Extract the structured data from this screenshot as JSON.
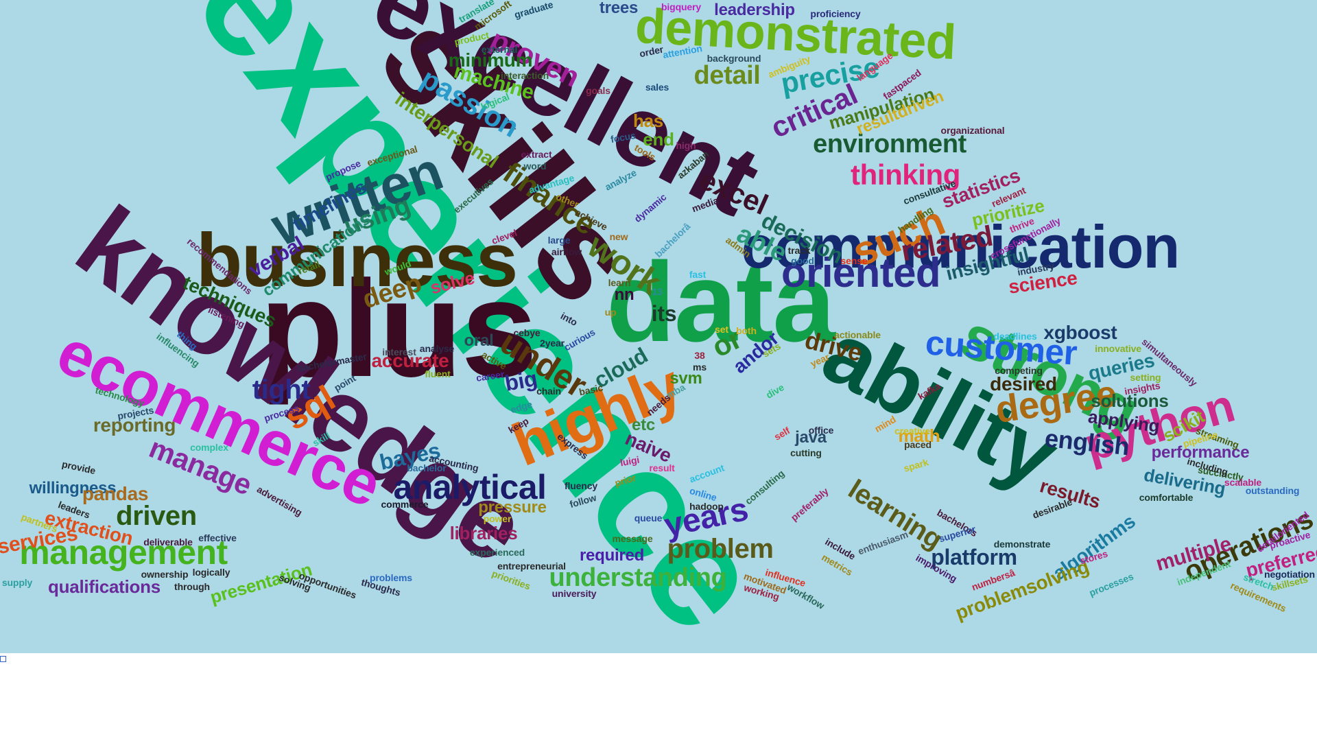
{
  "page": {
    "background": "#ffffff",
    "cloud_background": "#add8e6"
  },
  "wordcloud": {
    "words": [
      {
        "text": "experience",
        "color": "#00c082"
      },
      {
        "text": "skills",
        "color": "#3a0f27"
      },
      {
        "text": "excellent",
        "color": "#3a0f35"
      },
      {
        "text": "plus",
        "color": "#3a0a22"
      },
      {
        "text": "knowledge",
        "color": "#4a1548"
      },
      {
        "text": "data",
        "color": "#10a04a"
      },
      {
        "text": "business",
        "color": "#3d2f0a"
      },
      {
        "text": "communication",
        "color": "#14296e"
      },
      {
        "text": "ability",
        "color": "#00573d"
      },
      {
        "text": "ecommerce",
        "color": "#d21ed2"
      },
      {
        "text": "demonstrated",
        "color": "#6ab51a"
      },
      {
        "text": "strong",
        "color": "#23aa4d"
      },
      {
        "text": "highly",
        "color": "#e06c14"
      },
      {
        "text": "python",
        "color": "#cd2d8c"
      },
      {
        "text": "written",
        "color": "#1c5361"
      },
      {
        "text": "analytical",
        "color": "#1b1b68"
      },
      {
        "text": "management",
        "color": "#44b31e"
      },
      {
        "text": "oriented",
        "color": "#2d2d8d"
      },
      {
        "text": "customer",
        "color": "#2060e6"
      },
      {
        "text": "work",
        "color": "#51731c"
      },
      {
        "text": "finance",
        "color": "#4d4d0c"
      },
      {
        "text": "years",
        "color": "#4422a8"
      },
      {
        "text": "degree",
        "color": "#a96a13"
      },
      {
        "text": "learning",
        "color": "#5b5b1a"
      },
      {
        "text": "understanding",
        "color": "#3cb23c"
      },
      {
        "text": "problem",
        "color": "#5a5a1a"
      },
      {
        "text": "such",
        "color": "#cf6a16"
      },
      {
        "text": "thinking",
        "color": "#e0237b"
      },
      {
        "text": "environment",
        "color": "#185a32"
      },
      {
        "text": "critical",
        "color": "#6b2590"
      },
      {
        "text": "precise",
        "color": "#18a0a0"
      },
      {
        "text": "detail",
        "color": "#6b8c1c"
      },
      {
        "text": "passion",
        "color": "#2a9acb"
      },
      {
        "text": "proven",
        "color": "#a3209b"
      },
      {
        "text": "sql",
        "color": "#e05c10"
      },
      {
        "text": "under",
        "color": "#5a380d"
      },
      {
        "text": "deep",
        "color": "#7a5a12"
      },
      {
        "text": "using",
        "color": "#1f7a5a"
      },
      {
        "text": "manage",
        "color": "#8a2a9e"
      },
      {
        "text": "driven",
        "color": "#2a5a12"
      },
      {
        "text": "tight",
        "color": "#2a2a8a"
      },
      {
        "text": "extraction",
        "color": "#e0501c"
      },
      {
        "text": "services",
        "color": "#e0501c"
      },
      {
        "text": "qualifications",
        "color": "#6a2a9a"
      },
      {
        "text": "presentation",
        "color": "#5ac01e"
      },
      {
        "text": "willingness",
        "color": "#1a5a8a"
      },
      {
        "text": "pandas",
        "color": "#a86a1e"
      },
      {
        "text": "reporting",
        "color": "#6a6a2a"
      },
      {
        "text": "techniques",
        "color": "#1a5a1a"
      },
      {
        "text": "verbal",
        "color": "#4a1e9a"
      },
      {
        "text": "timelines",
        "color": "#1a4a8a"
      },
      {
        "text": "communications",
        "color": "#1e8a6a"
      },
      {
        "text": "interpersonal",
        "color": "#6a9a1a"
      },
      {
        "text": "machine",
        "color": "#5ac01e"
      },
      {
        "text": "minimum",
        "color": "#1a6a1a"
      },
      {
        "text": "excel",
        "color": "#3a0f27"
      },
      {
        "text": "able",
        "color": "#2a9a7a"
      },
      {
        "text": "decision",
        "color": "#1a6a5a"
      },
      {
        "text": "related",
        "color": "#7a1a3a"
      },
      {
        "text": "statistics",
        "color": "#a02060"
      },
      {
        "text": "prioritize",
        "color": "#7ac01e"
      },
      {
        "text": "insightful",
        "color": "#1a5a6a"
      },
      {
        "text": "science",
        "color": "#d02040"
      },
      {
        "text": "drive",
        "color": "#5a3a0a"
      },
      {
        "text": "xgboost",
        "color": "#1a3a6a"
      },
      {
        "text": "queries",
        "color": "#1a7a8a"
      },
      {
        "text": "solutions",
        "color": "#1a5a3a"
      },
      {
        "text": "english",
        "color": "#1a2a6a"
      },
      {
        "text": "applying",
        "color": "#3a1a5a"
      },
      {
        "text": "performance",
        "color": "#6a2a9a"
      },
      {
        "text": "delivering",
        "color": "#1a6a8a"
      },
      {
        "text": "scikit",
        "color": "#8ab01e"
      },
      {
        "text": "operations",
        "color": "#3a3a0a"
      },
      {
        "text": "preferred",
        "color": "#c02080"
      },
      {
        "text": "multiple",
        "color": "#a0206a"
      },
      {
        "text": "results",
        "color": "#7a1a2a"
      },
      {
        "text": "algorithms",
        "color": "#1a7aa0"
      },
      {
        "text": "platform",
        "color": "#1a3a6a"
      },
      {
        "text": "problemsolving",
        "color": "#8a8a0a"
      },
      {
        "text": "desired",
        "color": "#3a2a0a"
      },
      {
        "text": "math",
        "color": "#e0a010"
      },
      {
        "text": "java",
        "color": "#2a4a6a"
      },
      {
        "text": "naive",
        "color": "#6a1a6a"
      },
      {
        "text": "bayes",
        "color": "#1a6a9a"
      },
      {
        "text": "libraries",
        "color": "#a02060"
      },
      {
        "text": "required",
        "color": "#4a1ea8"
      },
      {
        "text": "pressure",
        "color": "#a08a1a"
      },
      {
        "text": "cloud",
        "color": "#1a6a5a"
      },
      {
        "text": "svm",
        "color": "#3a8a1a"
      },
      {
        "text": "etc",
        "color": "#3a8a3a"
      },
      {
        "text": "big",
        "color": "#2a2a8a"
      },
      {
        "text": "oral",
        "color": "#2a4a5a"
      },
      {
        "text": "accurate",
        "color": "#c02040"
      },
      {
        "text": "solve",
        "color": "#e0306a"
      },
      {
        "text": "its",
        "color": "#1a3a2a"
      },
      {
        "text": "nn",
        "color": "#3a0a3a"
      },
      {
        "text": "or",
        "color": "#2a8a2a"
      },
      {
        "text": "andor",
        "color": "#2a2aa0"
      },
      {
        "text": "has",
        "color": "#c08a10"
      },
      {
        "text": "end",
        "color": "#5ab01e"
      },
      {
        "text": "leadership",
        "color": "#4a2aa0"
      },
      {
        "text": "trees",
        "color": "#2a4a8a"
      },
      {
        "text": "manipulation",
        "color": "#4a7a1a"
      },
      {
        "text": "resultdriven",
        "color": "#d0b01e"
      },
      {
        "text": "bigquery",
        "color": "#c020c0"
      },
      {
        "text": "proficiency",
        "color": "#2a2a7a"
      },
      {
        "text": "translate",
        "color": "#1aa07a"
      },
      {
        "text": "microsoft",
        "color": "#5a5a0a"
      },
      {
        "text": "graduate",
        "color": "#1a4a6a"
      },
      {
        "text": "product",
        "color": "#7ac01e"
      },
      {
        "text": "external",
        "color": "#1a5a5a"
      },
      {
        "text": "order",
        "color": "#2a2a4a"
      },
      {
        "text": "attention",
        "color": "#2aa0e0"
      },
      {
        "text": "background",
        "color": "#2a4a5a"
      },
      {
        "text": "ambiguity",
        "color": "#d0c01e"
      },
      {
        "text": "language",
        "color": "#e0305a"
      },
      {
        "text": "fastpaced",
        "color": "#8a1a5a"
      },
      {
        "text": "organizational",
        "color": "#5a1a3a"
      },
      {
        "text": "interaction",
        "color": "#3a5a2a"
      },
      {
        "text": "logical",
        "color": "#2ac07a"
      },
      {
        "text": "goals",
        "color": "#8a2a4a"
      },
      {
        "text": "sales",
        "color": "#1a4a7a"
      },
      {
        "text": "focus",
        "color": "#2a5a8a"
      },
      {
        "text": "high",
        "color": "#8a2a6a"
      },
      {
        "text": "tools",
        "color": "#a06a1a"
      },
      {
        "text": "extract",
        "color": "#6a1a5a"
      },
      {
        "text": "word",
        "color": "#2a5a5a"
      },
      {
        "text": "exceptional",
        "color": "#6a5a1a"
      },
      {
        "text": "propose",
        "color": "#4a2aa0"
      },
      {
        "text": "advantage",
        "color": "#2ac0c0"
      },
      {
        "text": "azkaban",
        "color": "#2a3a2a"
      },
      {
        "text": "analyze",
        "color": "#2a8aa0"
      },
      {
        "text": "executives",
        "color": "#2a6a4a"
      },
      {
        "text": "other",
        "color": "#a08a1a"
      },
      {
        "text": "achieve",
        "color": "#4a3a1a"
      },
      {
        "text": "dynamic",
        "color": "#4a2aa0"
      },
      {
        "text": "media",
        "color": "#3a1a3a"
      },
      {
        "text": "consultative",
        "color": "#1a3a3a"
      },
      {
        "text": "relevant",
        "color": "#a02040"
      },
      {
        "text": "handling",
        "color": "#4a6a1a"
      },
      {
        "text": "thrive",
        "color": "#c02080"
      },
      {
        "text": "crossfunctionally",
        "color": "#a020a0"
      },
      {
        "text": "industry",
        "color": "#2a3a5a"
      },
      {
        "text": "recommendations",
        "color": "#6a2a6a"
      },
      {
        "text": "clevel",
        "color": "#a02060"
      },
      {
        "text": "new",
        "color": "#a06a1a"
      },
      {
        "text": "bachelorâ",
        "color": "#4aa0c0"
      },
      {
        "text": "admin",
        "color": "#8a7a1a"
      },
      {
        "text": "track",
        "color": "#2a2a2a"
      },
      {
        "text": "sense",
        "color": "#e0301a"
      },
      {
        "text": "good",
        "color": "#2a6a9a"
      },
      {
        "text": "large",
        "color": "#2a4a8a"
      },
      {
        "text": "airflow",
        "color": "#3a1a3a"
      },
      {
        "text": "retail",
        "color": "#4a7a1a"
      },
      {
        "text": "would",
        "color": "#3ac03a"
      },
      {
        "text": "fast",
        "color": "#2ac0e0"
      },
      {
        "text": "learn",
        "color": "#5a5a1a"
      },
      {
        "text": "listening",
        "color": "#6a1a5a"
      },
      {
        "text": "into",
        "color": "#2a2a4a"
      },
      {
        "text": "up",
        "color": "#a08a1a"
      },
      {
        "text": "13",
        "color": "#2a8aa0"
      },
      {
        "text": "curious",
        "color": "#2a4aa0"
      },
      {
        "text": "2year",
        "color": "#2a2a4a"
      },
      {
        "text": "cebye",
        "color": "#4a1a3a"
      },
      {
        "text": "set",
        "color": "#e0c01e"
      },
      {
        "text": "both",
        "color": "#d0b01e"
      },
      {
        "text": "actionable",
        "color": "#8a8a1a"
      },
      {
        "text": "deadlines",
        "color": "#2ac0e0"
      },
      {
        "text": "innovative",
        "color": "#8ab01e"
      },
      {
        "text": "simultaneously",
        "color": "#6a2a6a"
      },
      {
        "text": "competing",
        "color": "#2a3a2a"
      },
      {
        "text": "setting",
        "color": "#8ab01e"
      },
      {
        "text": "insights",
        "color": "#a02060"
      },
      {
        "text": "streaming",
        "color": "#4a5a0a"
      },
      {
        "text": "pipeline",
        "color": "#d0c01e"
      },
      {
        "text": "succinctly",
        "color": "#2a5a1a"
      },
      {
        "text": "including",
        "color": "#2a2a2a"
      },
      {
        "text": "scalable",
        "color": "#c02080"
      },
      {
        "text": "outstanding",
        "color": "#2a6ac0"
      },
      {
        "text": "comfortable",
        "color": "#1a3a2a"
      },
      {
        "text": "detailoriented",
        "color": "#a020a0"
      },
      {
        "text": "proactive",
        "color": "#a020a0"
      },
      {
        "text": "negotiation",
        "color": "#1a2a5a"
      },
      {
        "text": "skillsets",
        "color": "#8ab01e"
      },
      {
        "text": "stretch",
        "color": "#2ac0a0"
      },
      {
        "text": "independent",
        "color": "#4ac07a"
      },
      {
        "text": "requirements",
        "color": "#a08a1a"
      },
      {
        "text": "processes",
        "color": "#2aa0a0"
      },
      {
        "text": "stores",
        "color": "#c02080"
      },
      {
        "text": "desirable",
        "color": "#2a2a2a"
      },
      {
        "text": "bachelors",
        "color": "#4a1a3a"
      },
      {
        "text": "superior",
        "color": "#2a4aa0"
      },
      {
        "text": "demonstrate",
        "color": "#1a3a3a"
      },
      {
        "text": "improving",
        "color": "#4a1a6a"
      },
      {
        "text": "numbersâ",
        "color": "#c02040"
      },
      {
        "text": "spark",
        "color": "#c0c01e"
      },
      {
        "text": "enthusiasm",
        "color": "#4a5a6a"
      },
      {
        "text": "include",
        "color": "#3a1a3a"
      },
      {
        "text": "metrics",
        "color": "#a08a1a"
      },
      {
        "text": "influence",
        "color": "#e03020"
      },
      {
        "text": "working",
        "color": "#a02040"
      },
      {
        "text": "motivated",
        "color": "#a06a1a"
      },
      {
        "text": "workflow",
        "color": "#2a6a5a"
      },
      {
        "text": "paced",
        "color": "#4a3a1a"
      },
      {
        "text": "creative",
        "color": "#d0c01e"
      },
      {
        "text": "mind",
        "color": "#e08a1a"
      },
      {
        "text": "kafka",
        "color": "#8a1a3a"
      },
      {
        "text": "dive",
        "color": "#2ac07a"
      },
      {
        "text": "self",
        "color": "#e03040"
      },
      {
        "text": "office",
        "color": "#2a2a4a"
      },
      {
        "text": "cutting",
        "color": "#2a3a2a"
      },
      {
        "text": "year",
        "color": "#c08a1a"
      },
      {
        "text": "sets",
        "color": "#8ab01e"
      },
      {
        "text": "consulting",
        "color": "#2a6a4a"
      },
      {
        "text": "preferably",
        "color": "#a0206a"
      },
      {
        "text": "online",
        "color": "#2a8ae0"
      },
      {
        "text": "account",
        "color": "#2ac0e0"
      },
      {
        "text": "hadoop",
        "color": "#2a2a2a"
      },
      {
        "text": "mba",
        "color": "#4aa0a0"
      },
      {
        "text": "ms",
        "color": "#2a2a2a"
      },
      {
        "text": "38",
        "color": "#a02040"
      },
      {
        "text": "needs",
        "color": "#4a1a3a"
      },
      {
        "text": "result",
        "color": "#e03090"
      },
      {
        "text": "luigi",
        "color": "#c02080"
      },
      {
        "text": "prior",
        "color": "#a08a1a"
      },
      {
        "text": "queue",
        "color": "#2a4aa0"
      },
      {
        "text": "message",
        "color": "#4a6a1a"
      },
      {
        "text": "follow",
        "color": "#2a4a5a"
      },
      {
        "text": "fluency",
        "color": "#2a2a4a"
      },
      {
        "text": "express",
        "color": "#2a2a4a"
      },
      {
        "text": "keep",
        "color": "#4a1a3a"
      },
      {
        "text": "edge",
        "color": "#2a8aa0"
      },
      {
        "text": "chain",
        "color": "#2a2a2a"
      },
      {
        "text": "basic",
        "color": "#4a4a1a"
      },
      {
        "text": "career",
        "color": "#4a2aa0"
      },
      {
        "text": "active",
        "color": "#5a5a0a"
      },
      {
        "text": "analyse",
        "color": "#2a2a4a"
      },
      {
        "text": "interest",
        "color": "#4a4a5a"
      },
      {
        "text": "fluent",
        "color": "#8ab01e"
      },
      {
        "text": "bachelormaster",
        "color": "#2a2a4a"
      },
      {
        "text": "point",
        "color": "#2a4a6a"
      },
      {
        "text": "process",
        "color": "#4a2aa0"
      },
      {
        "text": "skill",
        "color": "#2ac0a0"
      },
      {
        "text": "technology",
        "color": "#2a8a4a"
      },
      {
        "text": "projects",
        "color": "#2a4a6a"
      },
      {
        "text": "influencing",
        "color": "#2a8a6a"
      },
      {
        "text": "thing",
        "color": "#2a6ac0"
      },
      {
        "text": "complex",
        "color": "#2ac0a0"
      },
      {
        "text": "bachelor",
        "color": "#2a6a9a"
      },
      {
        "text": "accounting",
        "color": "#2a2a4a"
      },
      {
        "text": "provide",
        "color": "#2a2a2a"
      },
      {
        "text": "advertising",
        "color": "#4a1a3a"
      },
      {
        "text": "leaders",
        "color": "#2a2a2a"
      },
      {
        "text": "commerce",
        "color": "#1a1a2a"
      },
      {
        "text": "deliverable",
        "color": "#4a1a3a"
      },
      {
        "text": "effective",
        "color": "#2a3a5a"
      },
      {
        "text": "partners",
        "color": "#c0c01e"
      },
      {
        "text": "supply",
        "color": "#2aa0a0"
      },
      {
        "text": "ownership",
        "color": "#2a2a2a"
      },
      {
        "text": "logically",
        "color": "#2a2a2a"
      },
      {
        "text": "through",
        "color": "#2a2a2a"
      },
      {
        "text": "solving",
        "color": "#2a2a2a"
      },
      {
        "text": "opportunities",
        "color": "#2a2a2a"
      },
      {
        "text": "problems",
        "color": "#2a6ac0"
      },
      {
        "text": "thoughts",
        "color": "#2a2a4a"
      },
      {
        "text": "experienced",
        "color": "#2a6a5a"
      },
      {
        "text": "entrepreneurial",
        "color": "#2a2a2a"
      },
      {
        "text": "power",
        "color": "#c0c01e"
      },
      {
        "text": "priorities",
        "color": "#8ab01e"
      },
      {
        "text": "university",
        "color": "#4a1a5a"
      }
    ]
  }
}
